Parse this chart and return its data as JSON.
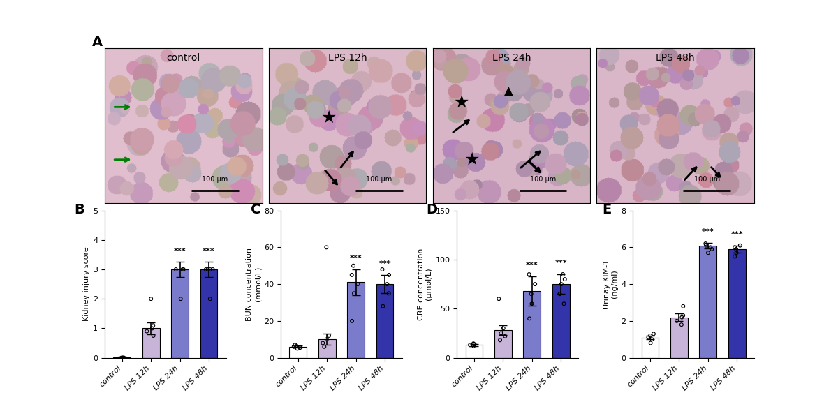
{
  "categories": [
    "control",
    "LPS 12h",
    "LPS 24h",
    "LPS 48h"
  ],
  "bar_colors": [
    "white",
    "#c8b4d8",
    "#7b7bcb",
    "#3333aa"
  ],
  "bar_edgecolor": "black",
  "panels": {
    "B": {
      "label": "B",
      "ylabel": "Kidney injury score",
      "ylim": [
        0,
        5
      ],
      "yticks": [
        0,
        1,
        2,
        3,
        4,
        5
      ],
      "means": [
        0.02,
        1.0,
        3.0,
        3.0
      ],
      "errors": [
        0.02,
        0.2,
        0.25,
        0.25
      ],
      "significance": [
        "",
        "",
        "***",
        "***"
      ],
      "scatter_y": [
        [
          0,
          0,
          0,
          0,
          0
        ],
        [
          0.75,
          0.9,
          1.0,
          1.1,
          2.0
        ],
        [
          2.0,
          3.0,
          3.0,
          3.0,
          3.0
        ],
        [
          2.0,
          3.0,
          3.0,
          3.0,
          3.0
        ]
      ]
    },
    "C": {
      "label": "C",
      "ylabel": "BUN concentration\n(mmol/L)",
      "ylim": [
        0,
        80
      ],
      "yticks": [
        0,
        20,
        40,
        60,
        80
      ],
      "means": [
        6.0,
        10.0,
        41.0,
        40.0
      ],
      "errors": [
        0.5,
        3.0,
        7.0,
        5.0
      ],
      "significance": [
        "",
        "",
        "***",
        "***"
      ],
      "scatter_y": [
        [
          5.0,
          5.5,
          6.0,
          6.5,
          7.0
        ],
        [
          6.0,
          8.0,
          10.0,
          12.0,
          60.0
        ],
        [
          20.0,
          35.0,
          40.0,
          45.0,
          50.0
        ],
        [
          28.0,
          35.0,
          40.0,
          45.0,
          48.0
        ]
      ]
    },
    "D": {
      "label": "D",
      "ylabel": "CRE concentration\n(μmol/L)",
      "ylim": [
        0,
        150
      ],
      "yticks": [
        0,
        50,
        100,
        150
      ],
      "means": [
        13.0,
        28.0,
        68.0,
        75.0
      ],
      "errors": [
        1.0,
        5.0,
        15.0,
        10.0
      ],
      "significance": [
        "",
        "",
        "***",
        "***"
      ],
      "scatter_y": [
        [
          12.0,
          13.0,
          13.5,
          14.0,
          14.5
        ],
        [
          18.0,
          22.0,
          25.0,
          30.0,
          60.0
        ],
        [
          40.0,
          55.0,
          65.0,
          75.0,
          85.0
        ],
        [
          55.0,
          65.0,
          75.0,
          80.0,
          85.0
        ]
      ]
    },
    "E": {
      "label": "E",
      "ylabel": "Urinay KIM-1\n(ng/ml)",
      "ylim": [
        0,
        8
      ],
      "yticks": [
        0,
        2,
        4,
        6,
        8
      ],
      "means": [
        1.1,
        2.2,
        6.1,
        5.9
      ],
      "errors": [
        0.1,
        0.2,
        0.15,
        0.2
      ],
      "significance": [
        "",
        "",
        "***",
        "***"
      ],
      "scatter_y": [
        [
          0.8,
          1.0,
          1.1,
          1.2,
          1.3
        ],
        [
          1.8,
          2.0,
          2.2,
          2.3,
          2.8
        ],
        [
          5.7,
          5.9,
          6.0,
          6.1,
          6.2
        ],
        [
          5.5,
          5.7,
          5.9,
          6.0,
          6.1
        ]
      ]
    }
  },
  "panel_labels": [
    "A",
    "B",
    "C",
    "D",
    "E"
  ],
  "micro_labels": [
    "control",
    "LPS 12h",
    "LPS 24h",
    "LPS 48h"
  ],
  "scale_bar_text": "100 μm",
  "background_color": "white"
}
